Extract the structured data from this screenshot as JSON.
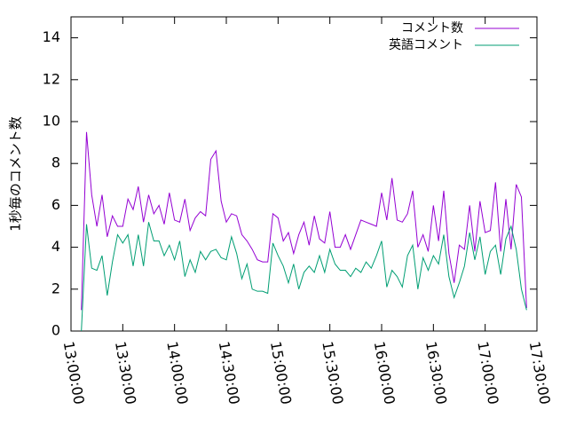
{
  "chart_data": {
    "type": "line",
    "y_label": "1秒毎のコメント数",
    "x": [
      "13:06:00",
      "13:09:00",
      "13:12:00",
      "13:15:00",
      "13:18:00",
      "13:21:00",
      "13:24:00",
      "13:27:00",
      "13:30:00",
      "13:33:00",
      "13:36:00",
      "13:39:00",
      "13:42:00",
      "13:45:00",
      "13:48:00",
      "13:51:00",
      "13:54:00",
      "13:57:00",
      "14:00:00",
      "14:03:00",
      "14:06:00",
      "14:09:00",
      "14:12:00",
      "14:15:00",
      "14:18:00",
      "14:21:00",
      "14:24:00",
      "14:27:00",
      "14:30:00",
      "14:33:00",
      "14:36:00",
      "14:39:00",
      "14:42:00",
      "14:45:00",
      "14:48:00",
      "14:51:00",
      "14:54:00",
      "14:57:00",
      "15:00:00",
      "15:03:00",
      "15:06:00",
      "15:09:00",
      "15:12:00",
      "15:15:00",
      "15:18:00",
      "15:21:00",
      "15:24:00",
      "15:27:00",
      "15:30:00",
      "15:33:00",
      "15:36:00",
      "15:39:00",
      "15:42:00",
      "15:45:00",
      "15:48:00",
      "15:51:00",
      "15:54:00",
      "15:57:00",
      "16:00:00",
      "16:03:00",
      "16:06:00",
      "16:09:00",
      "16:12:00",
      "16:15:00",
      "16:18:00",
      "16:21:00",
      "16:24:00",
      "16:27:00",
      "16:30:00",
      "16:33:00",
      "16:36:00",
      "16:39:00",
      "16:42:00",
      "16:45:00",
      "16:48:00",
      "16:51:00",
      "16:54:00",
      "16:57:00",
      "17:00:00",
      "17:03:00",
      "17:06:00",
      "17:09:00",
      "17:12:00",
      "17:15:00",
      "17:18:00",
      "17:21:00",
      "17:24:00"
    ],
    "series": [
      {
        "name": "コメント数",
        "color": "#9400d3",
        "values": [
          1.0,
          9.5,
          6.5,
          5.0,
          6.5,
          4.5,
          5.5,
          5.0,
          5.0,
          6.3,
          5.8,
          6.9,
          5.2,
          6.5,
          5.6,
          6.0,
          5.1,
          6.6,
          5.3,
          5.2,
          6.3,
          4.8,
          5.4,
          5.7,
          5.5,
          8.2,
          8.6,
          6.2,
          5.2,
          5.6,
          5.5,
          4.6,
          4.3,
          3.9,
          3.4,
          3.3,
          3.3,
          5.6,
          5.4,
          4.3,
          4.7,
          3.7,
          4.6,
          5.2,
          4.1,
          5.5,
          4.4,
          4.2,
          5.7,
          4.0,
          4.0,
          4.6,
          3.9,
          4.6,
          5.3,
          5.2,
          5.1,
          5.0,
          6.6,
          5.3,
          7.3,
          5.3,
          5.2,
          5.6,
          6.7,
          4.0,
          4.6,
          3.8,
          6.0,
          4.3,
          6.7,
          3.7,
          2.3,
          4.1,
          3.9,
          6.0,
          3.8,
          6.2,
          4.7,
          4.8,
          7.1,
          3.8,
          6.3,
          3.9,
          7.0,
          6.4,
          1.1
        ]
      },
      {
        "name": "英語コメント",
        "color": "#009e73",
        "values": [
          0.0,
          5.1,
          3.0,
          2.9,
          3.6,
          1.7,
          3.3,
          4.6,
          4.2,
          4.6,
          3.1,
          4.6,
          3.1,
          5.2,
          4.3,
          4.3,
          3.6,
          4.1,
          3.4,
          4.3,
          2.6,
          3.4,
          2.8,
          3.8,
          3.4,
          3.8,
          3.9,
          3.5,
          3.4,
          4.5,
          3.7,
          2.5,
          3.2,
          2.0,
          1.9,
          1.9,
          1.8,
          4.2,
          3.6,
          3.1,
          2.3,
          3.2,
          2.0,
          2.8,
          3.1,
          2.8,
          3.6,
          2.8,
          3.9,
          3.2,
          2.9,
          2.9,
          2.6,
          3.0,
          2.8,
          3.3,
          3.0,
          3.6,
          4.3,
          2.1,
          2.9,
          2.6,
          2.1,
          3.6,
          4.1,
          2.0,
          3.5,
          2.9,
          3.6,
          3.2,
          4.6,
          2.6,
          1.6,
          2.3,
          3.1,
          4.7,
          3.4,
          4.5,
          2.7,
          3.8,
          4.1,
          2.7,
          4.4,
          5.0,
          3.9,
          2.0,
          1.0
        ]
      }
    ],
    "xlim": [
      "13:00:00",
      "17:30:00"
    ],
    "xticks": [
      "13:00:00",
      "13:30:00",
      "14:00:00",
      "14:30:00",
      "15:00:00",
      "15:30:00",
      "16:00:00",
      "16:30:00",
      "17:00:00",
      "17:30:00"
    ],
    "ylim": [
      0,
      15
    ],
    "yticks": [
      0,
      2,
      4,
      6,
      8,
      10,
      12,
      14
    ],
    "legend": "top-right"
  }
}
